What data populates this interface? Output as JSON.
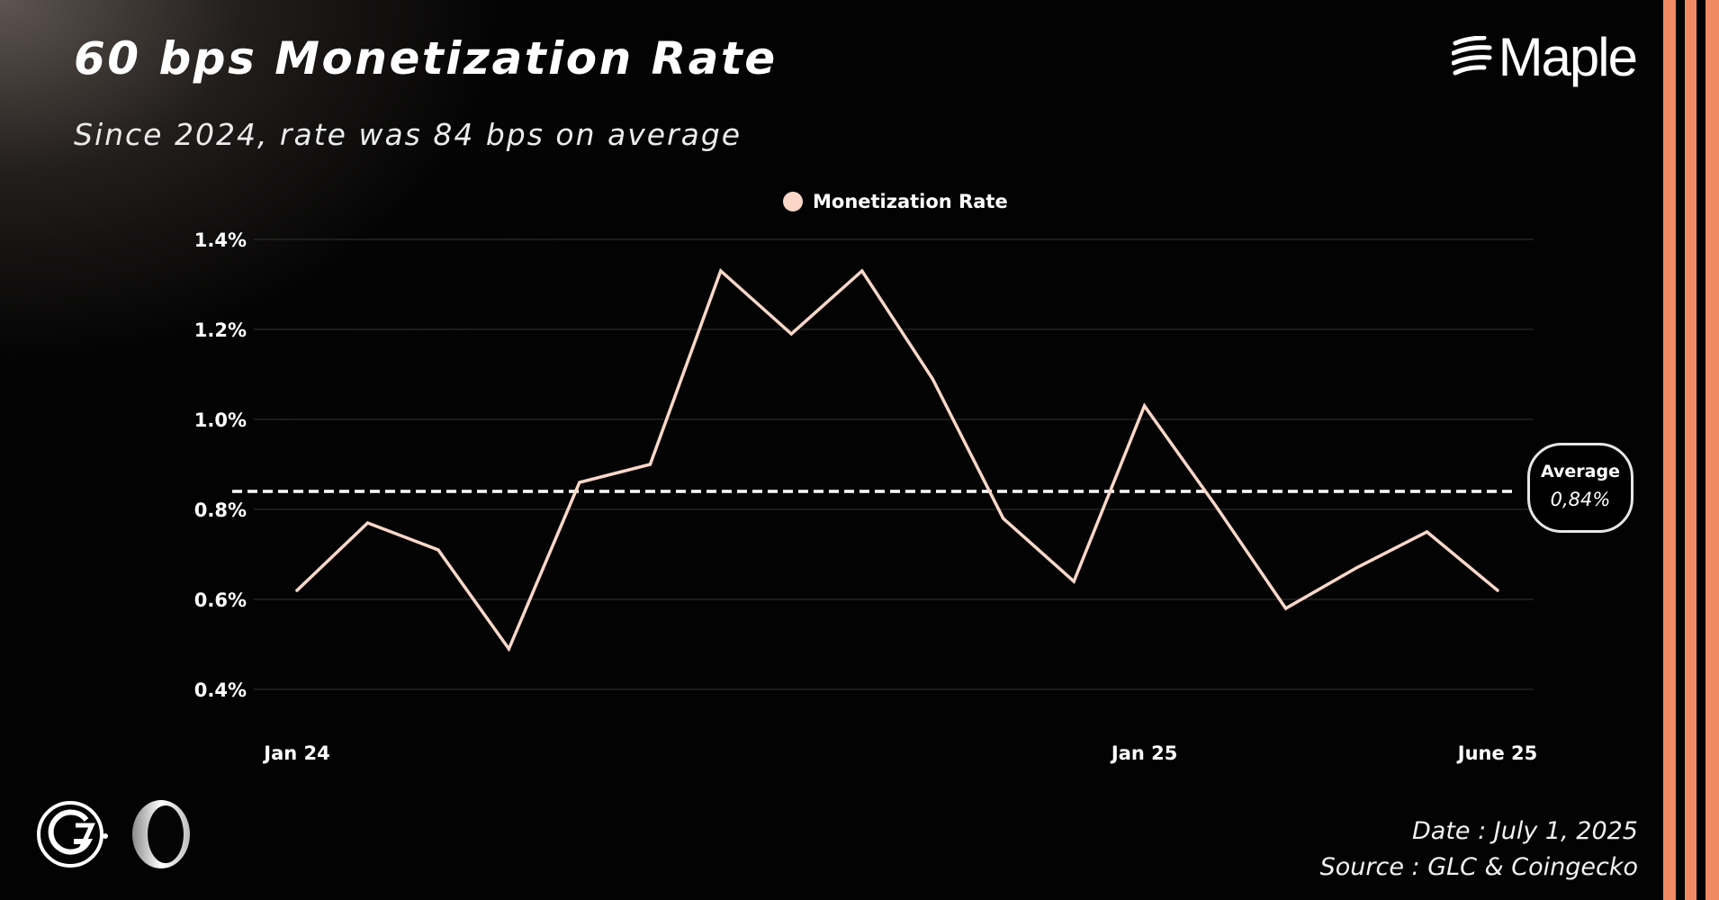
{
  "header": {
    "title": "60 bps Monetization Rate",
    "subtitle": "Since 2024, rate was 84 bps on average",
    "brand": "Maple"
  },
  "legend": {
    "label": "Monetization Rate"
  },
  "average_badge": {
    "label": "Average",
    "value": "0,84%"
  },
  "footer": {
    "date": "Date : July 1, 2025",
    "source": "Source : GLC & Coingecko"
  },
  "colors": {
    "line": "#fad7c9",
    "average_line": "#ffffff",
    "gridline": "#2a2a2a",
    "accent_stripes": "#f08a62",
    "background": "#000000"
  },
  "icons": {
    "brand_logo": "maple-wave-icon",
    "partner_logo_1": "g7-circle-logo",
    "partner_logo_2": "ring-logo"
  },
  "chart_data": {
    "type": "line",
    "title": "60 bps Monetization Rate",
    "subtitle": "Since 2024, rate was 84 bps on average",
    "xlabel": "",
    "ylabel": "",
    "x_tick_labels": [
      {
        "index": 0,
        "label": "Jan 24"
      },
      {
        "index": 12,
        "label": "Jan 25"
      },
      {
        "index": 17,
        "label": "June 25"
      }
    ],
    "y_ticks": [
      {
        "value": 0.4,
        "label": "0.4%"
      },
      {
        "value": 0.6,
        "label": "0.6%"
      },
      {
        "value": 0.8,
        "label": "0.8%"
      },
      {
        "value": 1.0,
        "label": "1.0%"
      },
      {
        "value": 1.2,
        "label": "1.2%"
      },
      {
        "value": 1.4,
        "label": "1.4%"
      }
    ],
    "ylim": [
      0.4,
      1.4
    ],
    "grid": true,
    "legend_position": "top-center",
    "series": [
      {
        "name": "Monetization Rate",
        "values": [
          0.62,
          0.77,
          0.71,
          0.49,
          0.86,
          0.9,
          1.33,
          1.19,
          1.33,
          1.09,
          0.78,
          0.64,
          1.03,
          0.81,
          0.58,
          0.67,
          0.75,
          0.62
        ]
      }
    ],
    "reference_lines": [
      {
        "label": "Average",
        "value": 0.84,
        "display": "0,84%",
        "style": "dashed"
      }
    ]
  }
}
